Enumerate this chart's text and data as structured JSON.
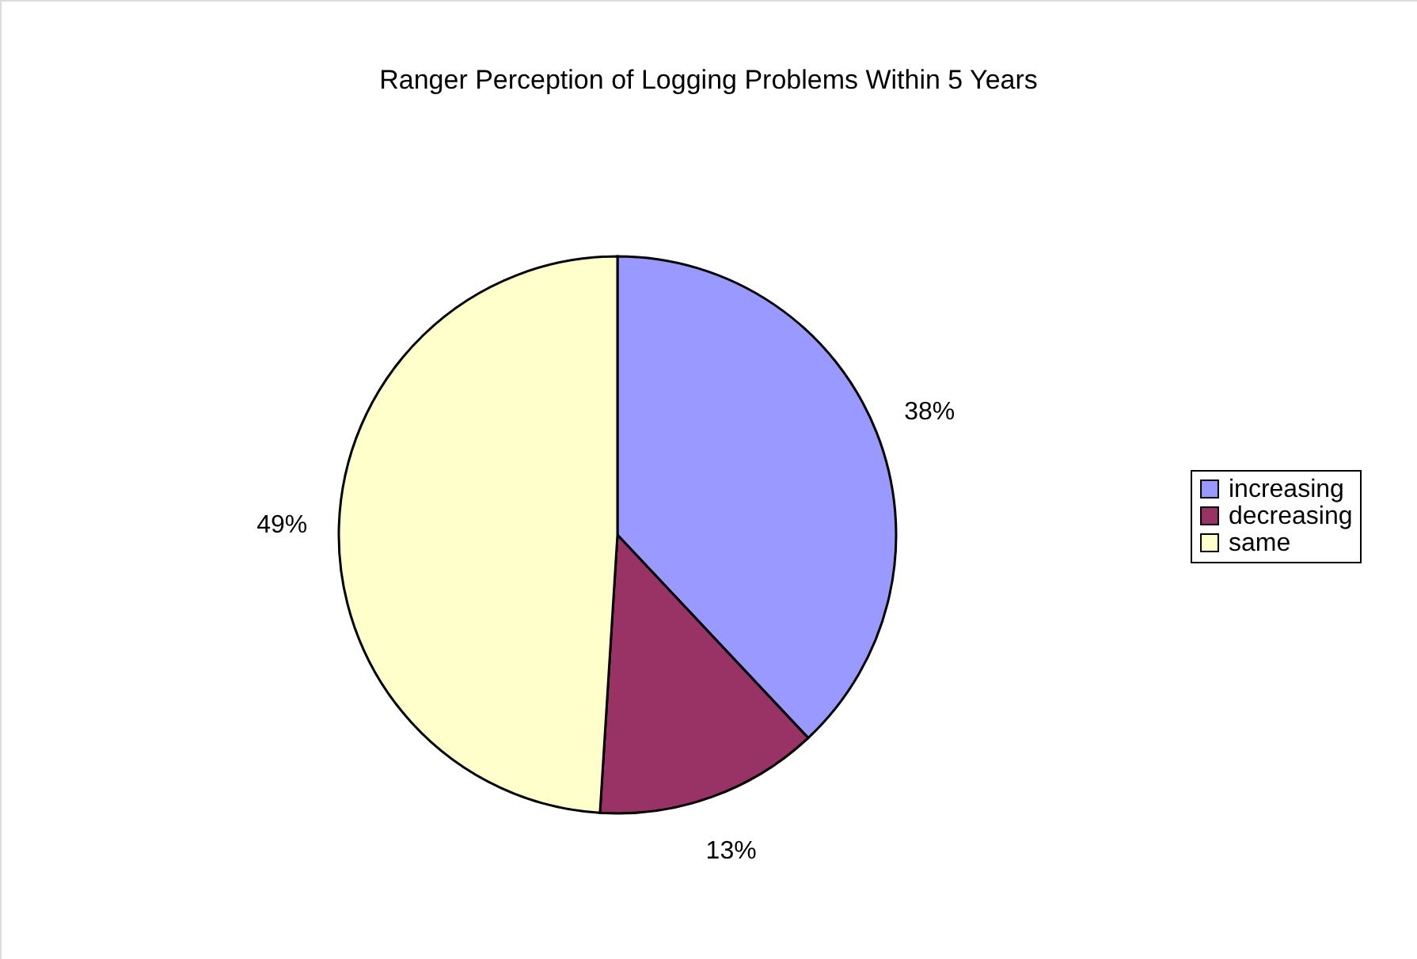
{
  "chart_data": {
    "type": "pie",
    "title": "Ranger Perception of Logging Problems Within 5 Years",
    "categories": [
      "increasing",
      "decreasing",
      "same"
    ],
    "values": [
      38,
      13,
      49
    ],
    "colors": [
      "#9999ff",
      "#993366",
      "#ffffcc"
    ],
    "value_labels": [
      "38%",
      "13%",
      "49%"
    ],
    "legend": "right"
  }
}
